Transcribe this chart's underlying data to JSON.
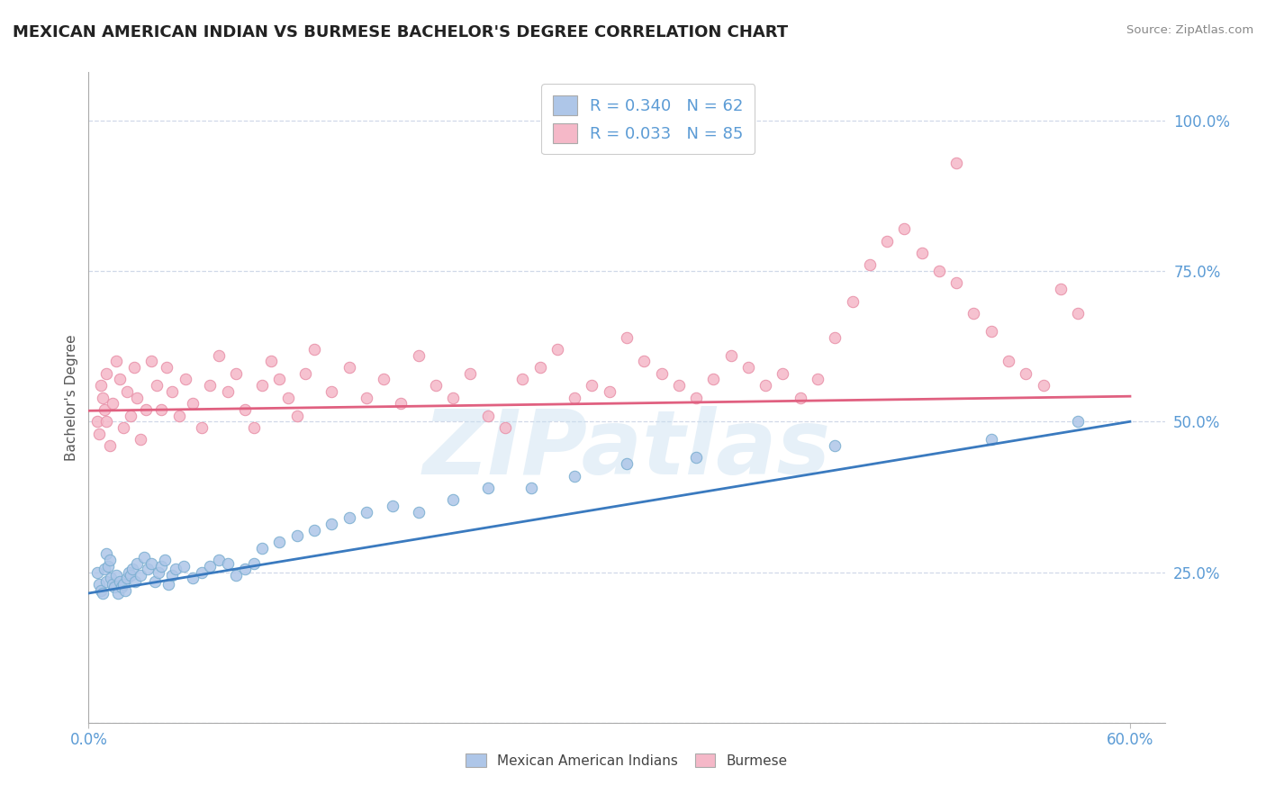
{
  "title": "MEXICAN AMERICAN INDIAN VS BURMESE BACHELOR'S DEGREE CORRELATION CHART",
  "source": "Source: ZipAtlas.com",
  "ylabel": "Bachelor's Degree",
  "xlim": [
    0.0,
    0.62
  ],
  "ylim": [
    0.0,
    1.08
  ],
  "x_ticks": [
    0.0,
    0.6
  ],
  "x_tick_labels": [
    "0.0%",
    "60.0%"
  ],
  "y_ticks": [
    0.25,
    0.5,
    0.75,
    1.0
  ],
  "y_tick_labels": [
    "25.0%",
    "50.0%",
    "75.0%",
    "100.0%"
  ],
  "watermark": "ZIPatlas",
  "blue_color": "#aec6e8",
  "pink_color": "#f5b8c8",
  "blue_edge_color": "#7aaed0",
  "pink_edge_color": "#e890a8",
  "blue_line_color": "#3a7abf",
  "pink_line_color": "#e06080",
  "blue_R": 0.34,
  "blue_N": 62,
  "pink_R": 0.033,
  "pink_N": 85,
  "blue_line_start_y": 0.215,
  "blue_line_end_y": 0.5,
  "pink_line_start_y": 0.518,
  "pink_line_end_y": 0.542,
  "legend_blue_text": "R = 0.340   N = 62",
  "legend_pink_text": "R = 0.033   N = 85",
  "legend_blue_sub": "Mexican American Indians",
  "legend_pink_sub": "Burmese",
  "grid_color": "#d0d8e8",
  "tick_color": "#5b9bd5",
  "title_color": "#222222",
  "source_color": "#888888",
  "blue_scatter_x": [
    0.005,
    0.006,
    0.007,
    0.008,
    0.009,
    0.01,
    0.01,
    0.011,
    0.012,
    0.013,
    0.014,
    0.015,
    0.016,
    0.017,
    0.018,
    0.019,
    0.02,
    0.021,
    0.022,
    0.023,
    0.024,
    0.025,
    0.027,
    0.028,
    0.03,
    0.032,
    0.034,
    0.036,
    0.038,
    0.04,
    0.042,
    0.044,
    0.046,
    0.048,
    0.05,
    0.055,
    0.06,
    0.065,
    0.07,
    0.075,
    0.08,
    0.085,
    0.09,
    0.095,
    0.1,
    0.11,
    0.12,
    0.13,
    0.14,
    0.15,
    0.16,
    0.175,
    0.19,
    0.21,
    0.23,
    0.255,
    0.28,
    0.31,
    0.35,
    0.43,
    0.52,
    0.57
  ],
  "blue_scatter_y": [
    0.25,
    0.23,
    0.22,
    0.215,
    0.255,
    0.235,
    0.28,
    0.26,
    0.27,
    0.24,
    0.23,
    0.225,
    0.245,
    0.215,
    0.235,
    0.225,
    0.23,
    0.22,
    0.24,
    0.25,
    0.245,
    0.255,
    0.235,
    0.265,
    0.245,
    0.275,
    0.255,
    0.265,
    0.235,
    0.25,
    0.26,
    0.27,
    0.23,
    0.245,
    0.255,
    0.26,
    0.24,
    0.25,
    0.26,
    0.27,
    0.265,
    0.245,
    0.255,
    0.265,
    0.29,
    0.3,
    0.31,
    0.32,
    0.33,
    0.34,
    0.35,
    0.36,
    0.35,
    0.37,
    0.39,
    0.39,
    0.41,
    0.43,
    0.44,
    0.46,
    0.47,
    0.5
  ],
  "pink_scatter_x": [
    0.005,
    0.006,
    0.007,
    0.008,
    0.009,
    0.01,
    0.01,
    0.012,
    0.014,
    0.016,
    0.018,
    0.02,
    0.022,
    0.024,
    0.026,
    0.028,
    0.03,
    0.033,
    0.036,
    0.039,
    0.042,
    0.045,
    0.048,
    0.052,
    0.056,
    0.06,
    0.065,
    0.07,
    0.075,
    0.08,
    0.085,
    0.09,
    0.095,
    0.1,
    0.105,
    0.11,
    0.115,
    0.12,
    0.125,
    0.13,
    0.14,
    0.15,
    0.16,
    0.17,
    0.18,
    0.19,
    0.2,
    0.21,
    0.22,
    0.23,
    0.24,
    0.25,
    0.26,
    0.27,
    0.28,
    0.29,
    0.3,
    0.31,
    0.32,
    0.33,
    0.34,
    0.35,
    0.36,
    0.37,
    0.38,
    0.39,
    0.4,
    0.41,
    0.42,
    0.43,
    0.44,
    0.45,
    0.46,
    0.47,
    0.48,
    0.49,
    0.5,
    0.51,
    0.52,
    0.53,
    0.54,
    0.55,
    0.56,
    0.57,
    0.5
  ],
  "pink_scatter_y": [
    0.5,
    0.48,
    0.56,
    0.54,
    0.52,
    0.58,
    0.5,
    0.46,
    0.53,
    0.6,
    0.57,
    0.49,
    0.55,
    0.51,
    0.59,
    0.54,
    0.47,
    0.52,
    0.6,
    0.56,
    0.52,
    0.59,
    0.55,
    0.51,
    0.57,
    0.53,
    0.49,
    0.56,
    0.61,
    0.55,
    0.58,
    0.52,
    0.49,
    0.56,
    0.6,
    0.57,
    0.54,
    0.51,
    0.58,
    0.62,
    0.55,
    0.59,
    0.54,
    0.57,
    0.53,
    0.61,
    0.56,
    0.54,
    0.58,
    0.51,
    0.49,
    0.57,
    0.59,
    0.62,
    0.54,
    0.56,
    0.55,
    0.64,
    0.6,
    0.58,
    0.56,
    0.54,
    0.57,
    0.61,
    0.59,
    0.56,
    0.58,
    0.54,
    0.57,
    0.64,
    0.7,
    0.76,
    0.8,
    0.82,
    0.78,
    0.75,
    0.73,
    0.68,
    0.65,
    0.6,
    0.58,
    0.56,
    0.72,
    0.68,
    0.93
  ]
}
